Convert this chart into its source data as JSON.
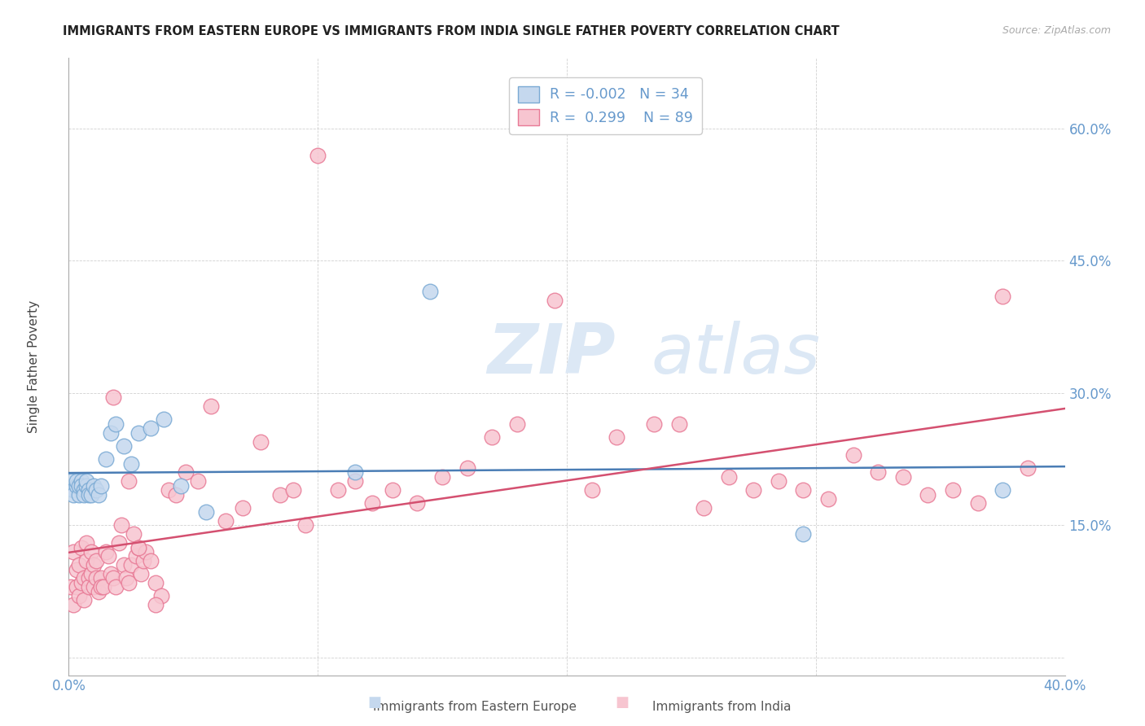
{
  "title": "IMMIGRANTS FROM EASTERN EUROPE VS IMMIGRANTS FROM INDIA SINGLE FATHER POVERTY CORRELATION CHART",
  "source": "Source: ZipAtlas.com",
  "ylabel": "Single Father Poverty",
  "xlim": [
    0.0,
    0.4
  ],
  "ylim": [
    -0.02,
    0.68
  ],
  "y_ticks": [
    0.0,
    0.15,
    0.3,
    0.45,
    0.6
  ],
  "y_tick_labels": [
    "",
    "15.0%",
    "30.0%",
    "45.0%",
    "60.0%"
  ],
  "x_ticks": [
    0.0,
    0.1,
    0.2,
    0.3,
    0.4
  ],
  "x_tick_labels": [
    "0.0%",
    "",
    "",
    "",
    "40.0%"
  ],
  "legend_R1": "-0.002",
  "legend_N1": "34",
  "legend_R2": "0.299",
  "legend_N2": "89",
  "color_blue": "#c5d8ee",
  "color_pink": "#f7c5d0",
  "edge_blue": "#7aaad4",
  "edge_pink": "#e87a96",
  "line_blue": "#4a7db5",
  "line_pink": "#d45070",
  "title_color": "#222222",
  "tick_color": "#6699cc",
  "watermark_color": "#dce8f5",
  "legend_label1": "Immigrants from Eastern Europe",
  "legend_label2": "Immigrants from India",
  "blue_x": [
    0.001,
    0.002,
    0.002,
    0.003,
    0.003,
    0.004,
    0.004,
    0.005,
    0.005,
    0.006,
    0.006,
    0.007,
    0.007,
    0.008,
    0.008,
    0.009,
    0.01,
    0.011,
    0.012,
    0.013,
    0.015,
    0.017,
    0.019,
    0.022,
    0.025,
    0.028,
    0.033,
    0.038,
    0.045,
    0.055,
    0.115,
    0.145,
    0.295,
    0.375
  ],
  "blue_y": [
    0.2,
    0.19,
    0.185,
    0.195,
    0.2,
    0.185,
    0.195,
    0.2,
    0.195,
    0.19,
    0.185,
    0.195,
    0.2,
    0.19,
    0.185,
    0.185,
    0.195,
    0.19,
    0.185,
    0.195,
    0.225,
    0.255,
    0.265,
    0.24,
    0.22,
    0.255,
    0.26,
    0.27,
    0.195,
    0.165,
    0.21,
    0.415,
    0.14,
    0.19
  ],
  "pink_x": [
    0.001,
    0.002,
    0.002,
    0.003,
    0.003,
    0.004,
    0.004,
    0.005,
    0.005,
    0.006,
    0.006,
    0.007,
    0.007,
    0.008,
    0.008,
    0.009,
    0.009,
    0.01,
    0.01,
    0.011,
    0.011,
    0.012,
    0.013,
    0.013,
    0.014,
    0.015,
    0.016,
    0.017,
    0.018,
    0.019,
    0.02,
    0.021,
    0.022,
    0.023,
    0.024,
    0.025,
    0.026,
    0.027,
    0.028,
    0.029,
    0.03,
    0.031,
    0.033,
    0.035,
    0.037,
    0.04,
    0.043,
    0.047,
    0.052,
    0.057,
    0.063,
    0.07,
    0.077,
    0.085,
    0.09,
    0.095,
    0.1,
    0.108,
    0.115,
    0.122,
    0.13,
    0.14,
    0.15,
    0.16,
    0.17,
    0.18,
    0.195,
    0.21,
    0.22,
    0.235,
    0.245,
    0.255,
    0.265,
    0.275,
    0.285,
    0.295,
    0.305,
    0.315,
    0.325,
    0.335,
    0.345,
    0.355,
    0.365,
    0.375,
    0.385,
    0.018,
    0.024,
    0.028,
    0.035
  ],
  "pink_y": [
    0.08,
    0.12,
    0.06,
    0.08,
    0.1,
    0.07,
    0.105,
    0.085,
    0.125,
    0.09,
    0.065,
    0.13,
    0.11,
    0.09,
    0.08,
    0.12,
    0.095,
    0.08,
    0.105,
    0.11,
    0.09,
    0.075,
    0.09,
    0.08,
    0.08,
    0.12,
    0.115,
    0.095,
    0.09,
    0.08,
    0.13,
    0.15,
    0.105,
    0.09,
    0.085,
    0.105,
    0.14,
    0.115,
    0.125,
    0.095,
    0.11,
    0.12,
    0.11,
    0.085,
    0.07,
    0.19,
    0.185,
    0.21,
    0.2,
    0.285,
    0.155,
    0.17,
    0.245,
    0.185,
    0.19,
    0.15,
    0.57,
    0.19,
    0.2,
    0.175,
    0.19,
    0.175,
    0.205,
    0.215,
    0.25,
    0.265,
    0.405,
    0.19,
    0.25,
    0.265,
    0.265,
    0.17,
    0.205,
    0.19,
    0.2,
    0.19,
    0.18,
    0.23,
    0.21,
    0.205,
    0.185,
    0.19,
    0.175,
    0.41,
    0.215,
    0.295,
    0.2,
    0.125,
    0.06
  ]
}
